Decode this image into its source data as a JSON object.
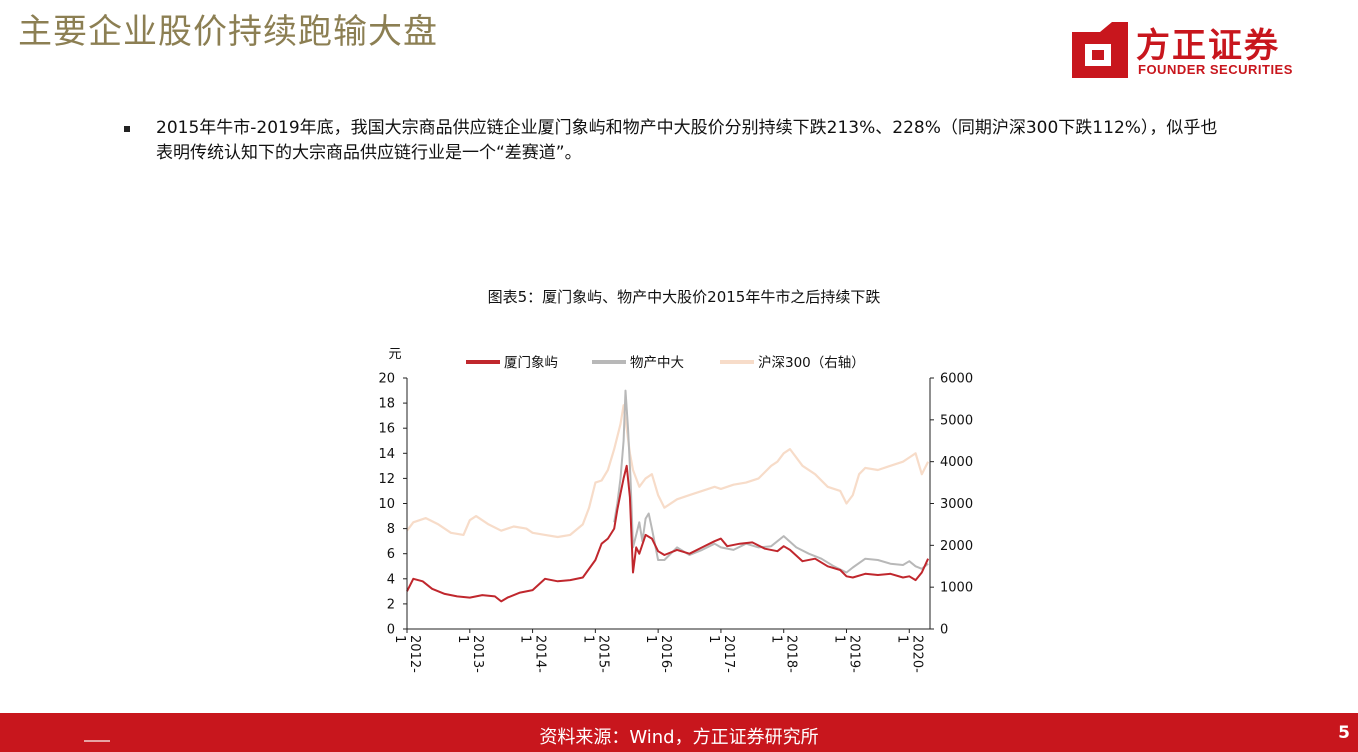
{
  "slide": {
    "title": "主要企业股价持续跑输大盘",
    "page_number": "5"
  },
  "logo": {
    "cn": "方正证券",
    "en": "FOUNDER SECURITIES"
  },
  "bullet": {
    "text": "2015年牛市-2019年底，我国大宗商品供应链企业厦门象屿和物产中大股价分别持续下跌213%、228%（同期沪深300下跌112%），似乎也表明传统认知下的大宗商品供应链行业是一个“差赛道”。"
  },
  "chart_caption": "图表5：厦门象屿、物产中大股价2015年牛市之后持续下跌",
  "footer": {
    "source": "资料来源：Wind，方正证券研究所"
  },
  "colors": {
    "title": "#8c7f53",
    "brand_red": "#c8161d",
    "xiamen": "#c0272d",
    "wuchan": "#b8b8b8",
    "hs300": "#f7dcc9"
  },
  "chart_data": {
    "type": "line",
    "left_axis_unit": "元",
    "left_ylim": [
      0,
      20
    ],
    "left_ticks": [
      0,
      2,
      4,
      6,
      8,
      10,
      12,
      14,
      16,
      18,
      20
    ],
    "right_ylim": [
      0,
      6000
    ],
    "right_ticks": [
      0,
      1000,
      2000,
      3000,
      4000,
      5000,
      6000
    ],
    "xlim": [
      2012.0,
      2020.33
    ],
    "x_ticks": [
      {
        "x": 2012,
        "year": "2012-",
        "month": "1"
      },
      {
        "x": 2013,
        "year": "2013-",
        "month": "1"
      },
      {
        "x": 2014,
        "year": "2014-",
        "month": "1"
      },
      {
        "x": 2015,
        "year": "2015-",
        "month": "1"
      },
      {
        "x": 2016,
        "year": "2016-",
        "month": "1"
      },
      {
        "x": 2017,
        "year": "2017-",
        "month": "1"
      },
      {
        "x": 2018,
        "year": "2018-",
        "month": "1"
      },
      {
        "x": 2019,
        "year": "2019-",
        "month": "1"
      },
      {
        "x": 2020,
        "year": "2020-",
        "month": "1"
      }
    ],
    "legend": "top",
    "series": [
      {
        "name": "厦门象屿",
        "axis": "left",
        "x": [
          2012.0,
          2012.1,
          2012.25,
          2012.4,
          2012.6,
          2012.8,
          2013.0,
          2013.2,
          2013.4,
          2013.5,
          2013.6,
          2013.8,
          2014.0,
          2014.2,
          2014.4,
          2014.6,
          2014.8,
          2015.0,
          2015.1,
          2015.2,
          2015.3,
          2015.35,
          2015.4,
          2015.45,
          2015.5,
          2015.55,
          2015.6,
          2015.65,
          2015.7,
          2015.8,
          2015.9,
          2016.0,
          2016.1,
          2016.3,
          2016.5,
          2016.7,
          2016.9,
          2017.0,
          2017.1,
          2017.3,
          2017.5,
          2017.7,
          2017.9,
          2018.0,
          2018.1,
          2018.3,
          2018.5,
          2018.7,
          2018.9,
          2019.0,
          2019.1,
          2019.3,
          2019.5,
          2019.7,
          2019.9,
          2020.0,
          2020.1,
          2020.2,
          2020.3
        ],
        "values": [
          3.0,
          4.0,
          3.8,
          3.2,
          2.8,
          2.6,
          2.5,
          2.7,
          2.6,
          2.2,
          2.5,
          2.9,
          3.1,
          4.0,
          3.8,
          3.9,
          4.1,
          5.5,
          6.8,
          7.2,
          8.0,
          9.5,
          10.8,
          12.0,
          13.0,
          10.5,
          4.5,
          6.5,
          6.0,
          7.5,
          7.2,
          6.2,
          5.9,
          6.3,
          6.0,
          6.5,
          7.0,
          7.2,
          6.6,
          6.8,
          6.9,
          6.4,
          6.2,
          6.6,
          6.3,
          5.4,
          5.6,
          5.0,
          4.7,
          4.2,
          4.1,
          4.4,
          4.3,
          4.4,
          4.1,
          4.2,
          3.9,
          4.5,
          5.6
        ]
      },
      {
        "name": "物产中大",
        "axis": "left",
        "x": [
          2015.3,
          2015.35,
          2015.4,
          2015.45,
          2015.48,
          2015.52,
          2015.56,
          2015.6,
          2015.65,
          2015.7,
          2015.75,
          2015.8,
          2015.85,
          2015.9,
          2016.0,
          2016.1,
          2016.3,
          2016.5,
          2016.7,
          2016.9,
          2017.0,
          2017.2,
          2017.4,
          2017.6,
          2017.8,
          2018.0,
          2018.2,
          2018.4,
          2018.6,
          2018.8,
          2019.0,
          2019.1,
          2019.3,
          2019.5,
          2019.7,
          2019.9,
          2020.0,
          2020.1,
          2020.2,
          2020.3
        ],
        "values": [
          8.5,
          10.0,
          12.0,
          15.0,
          19.0,
          16.0,
          12.0,
          6.5,
          7.5,
          8.5,
          7.0,
          8.8,
          9.2,
          8.0,
          5.5,
          5.5,
          6.5,
          5.9,
          6.3,
          6.8,
          6.5,
          6.3,
          6.8,
          6.5,
          6.6,
          7.4,
          6.5,
          6.0,
          5.6,
          5.0,
          4.5,
          4.9,
          5.6,
          5.5,
          5.2,
          5.1,
          5.4,
          5.0,
          4.8,
          5.2
        ]
      },
      {
        "name": "沪深300（右轴）",
        "axis": "right",
        "x": [
          2012.0,
          2012.1,
          2012.3,
          2012.5,
          2012.7,
          2012.9,
          2013.0,
          2013.1,
          2013.3,
          2013.5,
          2013.7,
          2013.9,
          2014.0,
          2014.2,
          2014.4,
          2014.6,
          2014.8,
          2014.9,
          2015.0,
          2015.1,
          2015.2,
          2015.3,
          2015.4,
          2015.45,
          2015.5,
          2015.55,
          2015.6,
          2015.7,
          2015.8,
          2015.9,
          2016.0,
          2016.1,
          2016.3,
          2016.5,
          2016.7,
          2016.9,
          2017.0,
          2017.2,
          2017.4,
          2017.6,
          2017.8,
          2017.9,
          2018.0,
          2018.1,
          2018.3,
          2018.5,
          2018.7,
          2018.9,
          2019.0,
          2019.1,
          2019.2,
          2019.3,
          2019.5,
          2019.7,
          2019.9,
          2020.0,
          2020.1,
          2020.2,
          2020.3
        ],
        "values": [
          2350,
          2550,
          2650,
          2500,
          2300,
          2250,
          2600,
          2700,
          2500,
          2350,
          2450,
          2400,
          2300,
          2250,
          2200,
          2250,
          2500,
          2900,
          3500,
          3550,
          3800,
          4300,
          4900,
          5350,
          4800,
          4200,
          3800,
          3400,
          3600,
          3700,
          3200,
          2900,
          3100,
          3200,
          3300,
          3400,
          3350,
          3450,
          3500,
          3600,
          3900,
          4000,
          4200,
          4300,
          3900,
          3700,
          3400,
          3300,
          3000,
          3200,
          3700,
          3850,
          3800,
          3900,
          4000,
          4100,
          4200,
          3700,
          4000
        ]
      }
    ]
  }
}
